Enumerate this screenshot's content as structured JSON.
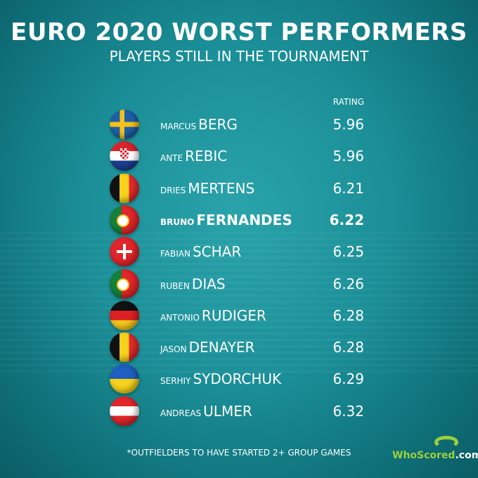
{
  "title": "EURO 2020 WORST PERFORMERS",
  "subtitle": "PLAYERS STILL IN THE TOURNAMENT",
  "rating_header": "RATING",
  "footnote": "*OUTFIELDERS TO HAVE STARTED 2+ GROUP GAMES",
  "logo": {
    "who": "WhoScored",
    "com": ".com"
  },
  "chart_data": {
    "type": "table",
    "title": "EURO 2020 WORST PERFORMERS",
    "columns": [
      "flag",
      "player",
      "RATING"
    ],
    "rows": [
      {
        "flag": "sweden-flag-icon",
        "first": "MARCUS",
        "last": "BERG",
        "rating": "5.96"
      },
      {
        "flag": "croatia-flag-icon",
        "first": "ANTE",
        "last": "REBIC",
        "rating": "5.96"
      },
      {
        "flag": "belgium-flag-icon",
        "first": "DRIES",
        "last": "MERTENS",
        "rating": "6.21"
      },
      {
        "flag": "portugal-flag-icon",
        "first": "BRUNO",
        "last": "FERNANDES",
        "rating": "6.22",
        "highlight": true
      },
      {
        "flag": "switzerland-flag-icon",
        "first": "FABIAN",
        "last": "SCHAR",
        "rating": "6.25"
      },
      {
        "flag": "portugal-flag-icon",
        "first": "RUBEN",
        "last": "DIAS",
        "rating": "6.26"
      },
      {
        "flag": "germany-flag-icon",
        "first": "ANTONIO",
        "last": "RUDIGER",
        "rating": "6.28"
      },
      {
        "flag": "belgium-flag-icon",
        "first": "JASON",
        "last": "DENAYER",
        "rating": "6.28"
      },
      {
        "flag": "ukraine-flag-icon",
        "first": "SERHIY",
        "last": "SYDORCHUK",
        "rating": "6.29"
      },
      {
        "flag": "austria-flag-icon",
        "first": "ANDREAS",
        "last": "ULMER",
        "rating": "6.32"
      }
    ]
  }
}
